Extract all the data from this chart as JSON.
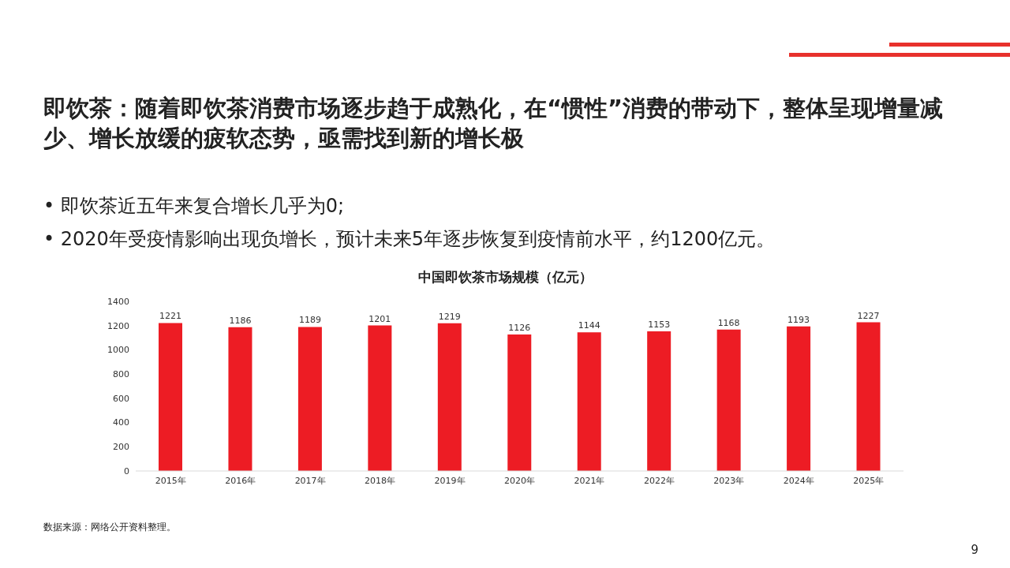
{
  "chart_data": {
    "type": "bar",
    "title": "中国即饮茶市场规模（亿元）",
    "categories": [
      "2015年",
      "2016年",
      "2017年",
      "2018年",
      "2019年",
      "2020年",
      "2021年",
      "2022年",
      "2023年",
      "2024年",
      "2025年"
    ],
    "values": [
      1221,
      1186,
      1189,
      1201,
      1219,
      1126,
      1144,
      1153,
      1168,
      1193,
      1227
    ],
    "color": "#ed1c24",
    "ylim": [
      0,
      1400
    ],
    "yticks": [
      0,
      200,
      400,
      600,
      800,
      1000,
      1200,
      1400
    ],
    "data_labels": true,
    "annotations": [
      "即饮茶：随着即饮茶消费市场逐步趋于成熟化，在“惯性”消费的带动下，整体呈现增量减少、增长放缓的疲软态势，亟需找到新的增长极",
      "•  即饮茶近五年来复合增长几乎为0;",
      "•  2020年受疫情影响出现负增长，预计未来5年逐步恢复到疫情前水平，约1200亿元。",
      "数据来源：网络公开资料整理。",
      "9"
    ]
  }
}
